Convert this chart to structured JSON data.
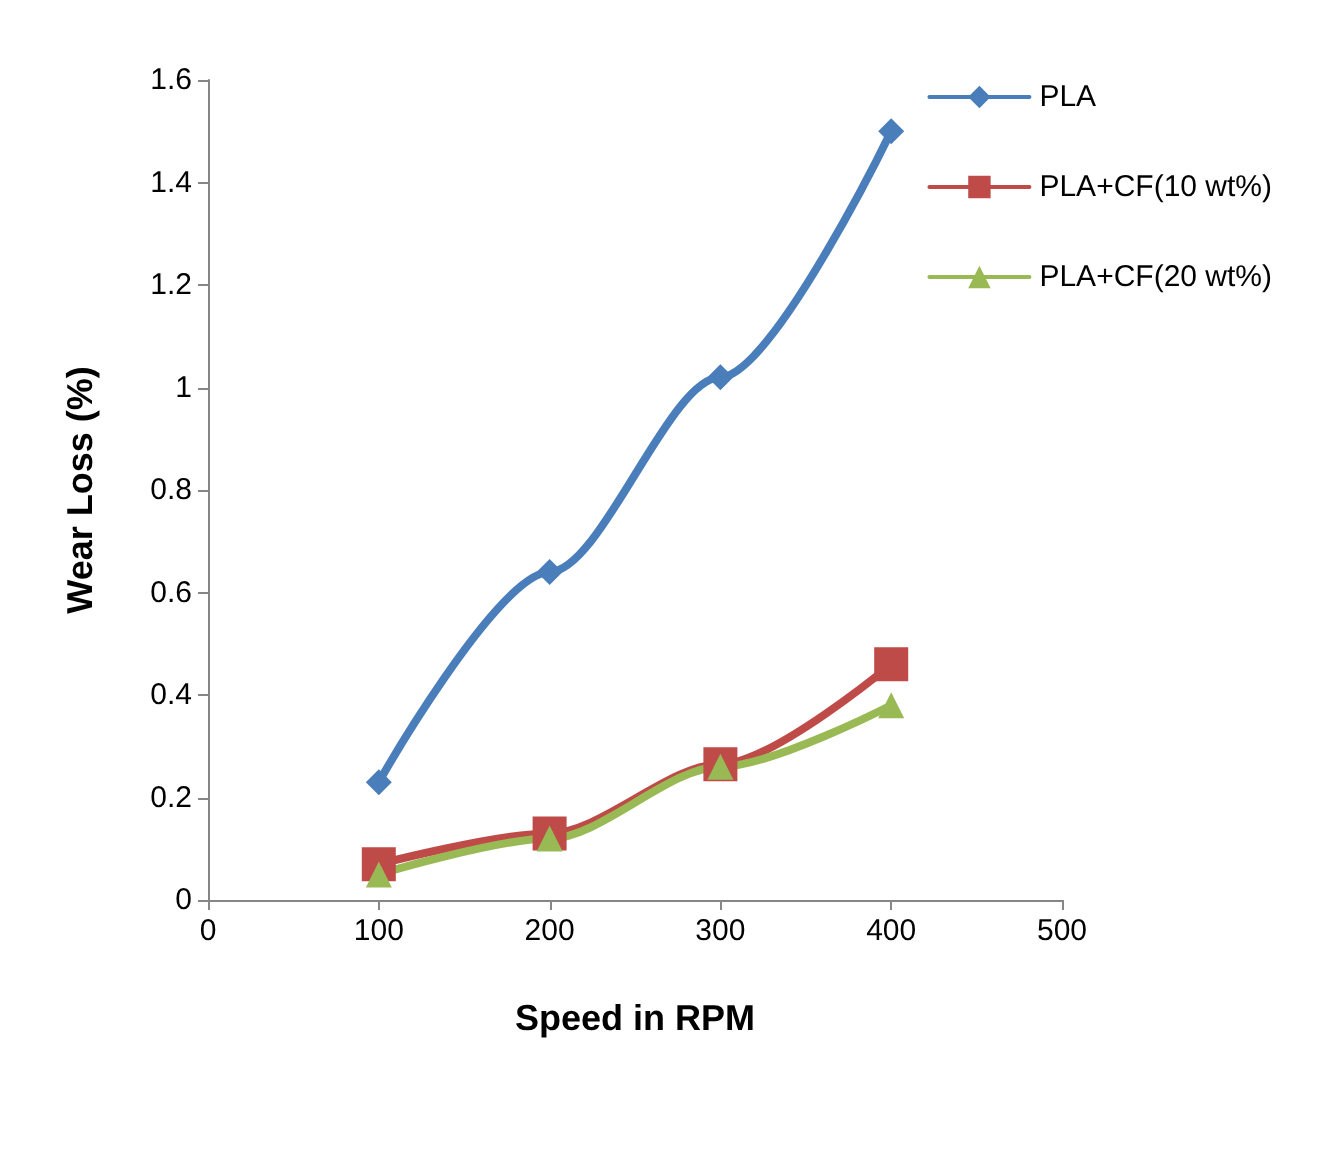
{
  "chart_data": {
    "type": "line",
    "xlabel": "Speed in RPM",
    "ylabel": "Wear Loss (%)",
    "x": [
      100,
      200,
      300,
      400
    ],
    "series": [
      {
        "name": "PLA",
        "color": "#4a7ebb",
        "marker": "diamond",
        "values": [
          0.23,
          0.64,
          1.02,
          1.5
        ]
      },
      {
        "name": "PLA+CF(10 wt%)",
        "color": "#be4b48",
        "marker": "square",
        "values": [
          0.07,
          0.13,
          0.265,
          0.46
        ]
      },
      {
        "name": "PLA+CF(20 wt%)",
        "color": "#98b954",
        "marker": "triangle",
        "values": [
          0.05,
          0.12,
          0.26,
          0.38
        ]
      }
    ],
    "xlim": [
      0,
      500
    ],
    "xticks": [
      0,
      100,
      200,
      300,
      400,
      500
    ],
    "ylim": [
      0,
      1.6
    ],
    "yticks": [
      0,
      0.2,
      0.4,
      0.6,
      0.8,
      1,
      1.2,
      1.4,
      1.6
    ],
    "grid": false,
    "legend": "right",
    "line_style": "solid"
  }
}
